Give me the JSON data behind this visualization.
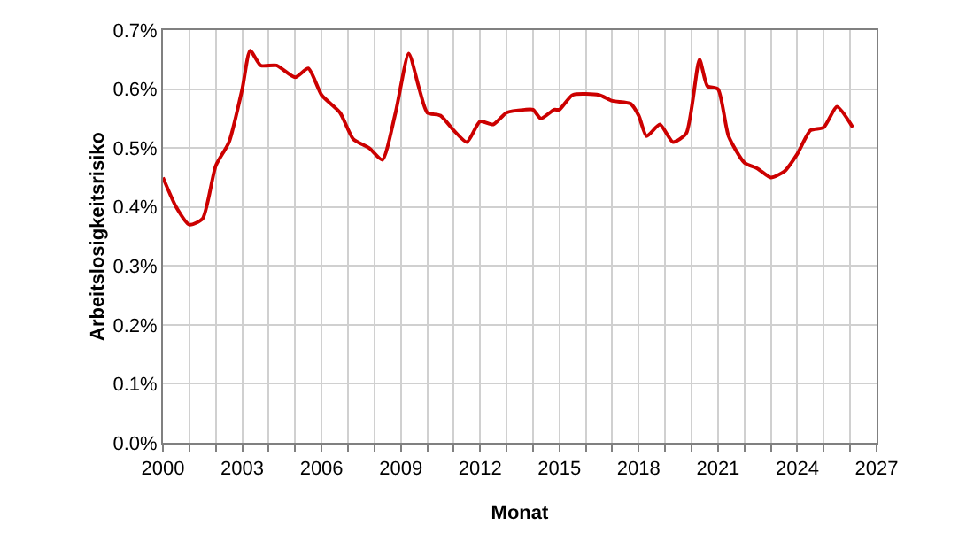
{
  "chart_data": {
    "type": "line",
    "xlabel": "Monat",
    "ylabel": "Arbeitslosigkeitsrisiko",
    "x": [
      2000,
      2000.5,
      2001,
      2001.5,
      2002,
      2002.5,
      2003,
      2003.3,
      2003.7,
      2004.3,
      2005,
      2005.5,
      2006,
      2006.7,
      2007.2,
      2007.8,
      2008.3,
      2008.8,
      2009.3,
      2009.7,
      2010,
      2010.5,
      2011,
      2011.5,
      2012,
      2012.5,
      2013,
      2013.7,
      2014,
      2014.3,
      2014.8,
      2015,
      2015.5,
      2016.5,
      2017,
      2017.7,
      2018,
      2018.3,
      2018.8,
      2019.3,
      2019.8,
      2020.3,
      2020.6,
      2021,
      2021.4,
      2022,
      2022.5,
      2023,
      2023.5,
      2024,
      2024.5,
      2025,
      2025.5,
      2026.1
    ],
    "series": [
      {
        "color": "#cc0000",
        "values": [
          0.45,
          0.4,
          0.37,
          0.38,
          0.47,
          0.51,
          0.6,
          0.665,
          0.64,
          0.64,
          0.62,
          0.635,
          0.59,
          0.56,
          0.515,
          0.5,
          0.48,
          0.56,
          0.66,
          0.6,
          0.56,
          0.555,
          0.53,
          0.51,
          0.545,
          0.54,
          0.56,
          0.565,
          0.565,
          0.55,
          0.565,
          0.565,
          0.59,
          0.59,
          0.58,
          0.575,
          0.555,
          0.52,
          0.54,
          0.51,
          0.525,
          0.65,
          0.605,
          0.6,
          0.52,
          0.475,
          0.465,
          0.45,
          0.46,
          0.49,
          0.53,
          0.535,
          0.57,
          0.535
        ]
      }
    ],
    "xlim": [
      2000,
      2027
    ],
    "xticks": [
      2000,
      {
        "value": 2001,
        "label": null
      },
      {
        "value": 2002,
        "label": null
      },
      2003,
      {
        "value": 2004,
        "label": null
      },
      {
        "value": 2005,
        "label": null
      },
      2006,
      {
        "value": 2007,
        "label": null
      },
      {
        "value": 2008,
        "label": null
      },
      2009,
      {
        "value": 2010,
        "label": null
      },
      {
        "value": 2011,
        "label": null
      },
      2012,
      {
        "value": 2013,
        "label": null
      },
      {
        "value": 2014,
        "label": null
      },
      2015,
      {
        "value": 2016,
        "label": null
      },
      {
        "value": 2017,
        "label": null
      },
      2018,
      {
        "value": 2019,
        "label": null
      },
      {
        "value": 2020,
        "label": null
      },
      2021,
      {
        "value": 2022,
        "label": null
      },
      {
        "value": 2023,
        "label": null
      },
      2024,
      {
        "value": 2025,
        "label": null
      },
      {
        "value": 2026,
        "label": null
      },
      2027
    ],
    "ylim": [
      0,
      0.7
    ],
    "yticks": [
      {
        "value": 0,
        "label": "0.0%"
      },
      {
        "value": 0.1,
        "label": "0.1%"
      },
      {
        "value": 0.2,
        "label": "0.2%"
      },
      {
        "value": 0.3,
        "label": "0.3%"
      },
      {
        "value": 0.4,
        "label": "0.4%"
      },
      {
        "value": 0.5,
        "label": "0.5%"
      },
      {
        "value": 0.6,
        "label": "0.6%"
      },
      {
        "value": 0.7,
        "label": "0.7%"
      }
    ],
    "grid": true,
    "marker": "none",
    "line_style": "solid"
  }
}
